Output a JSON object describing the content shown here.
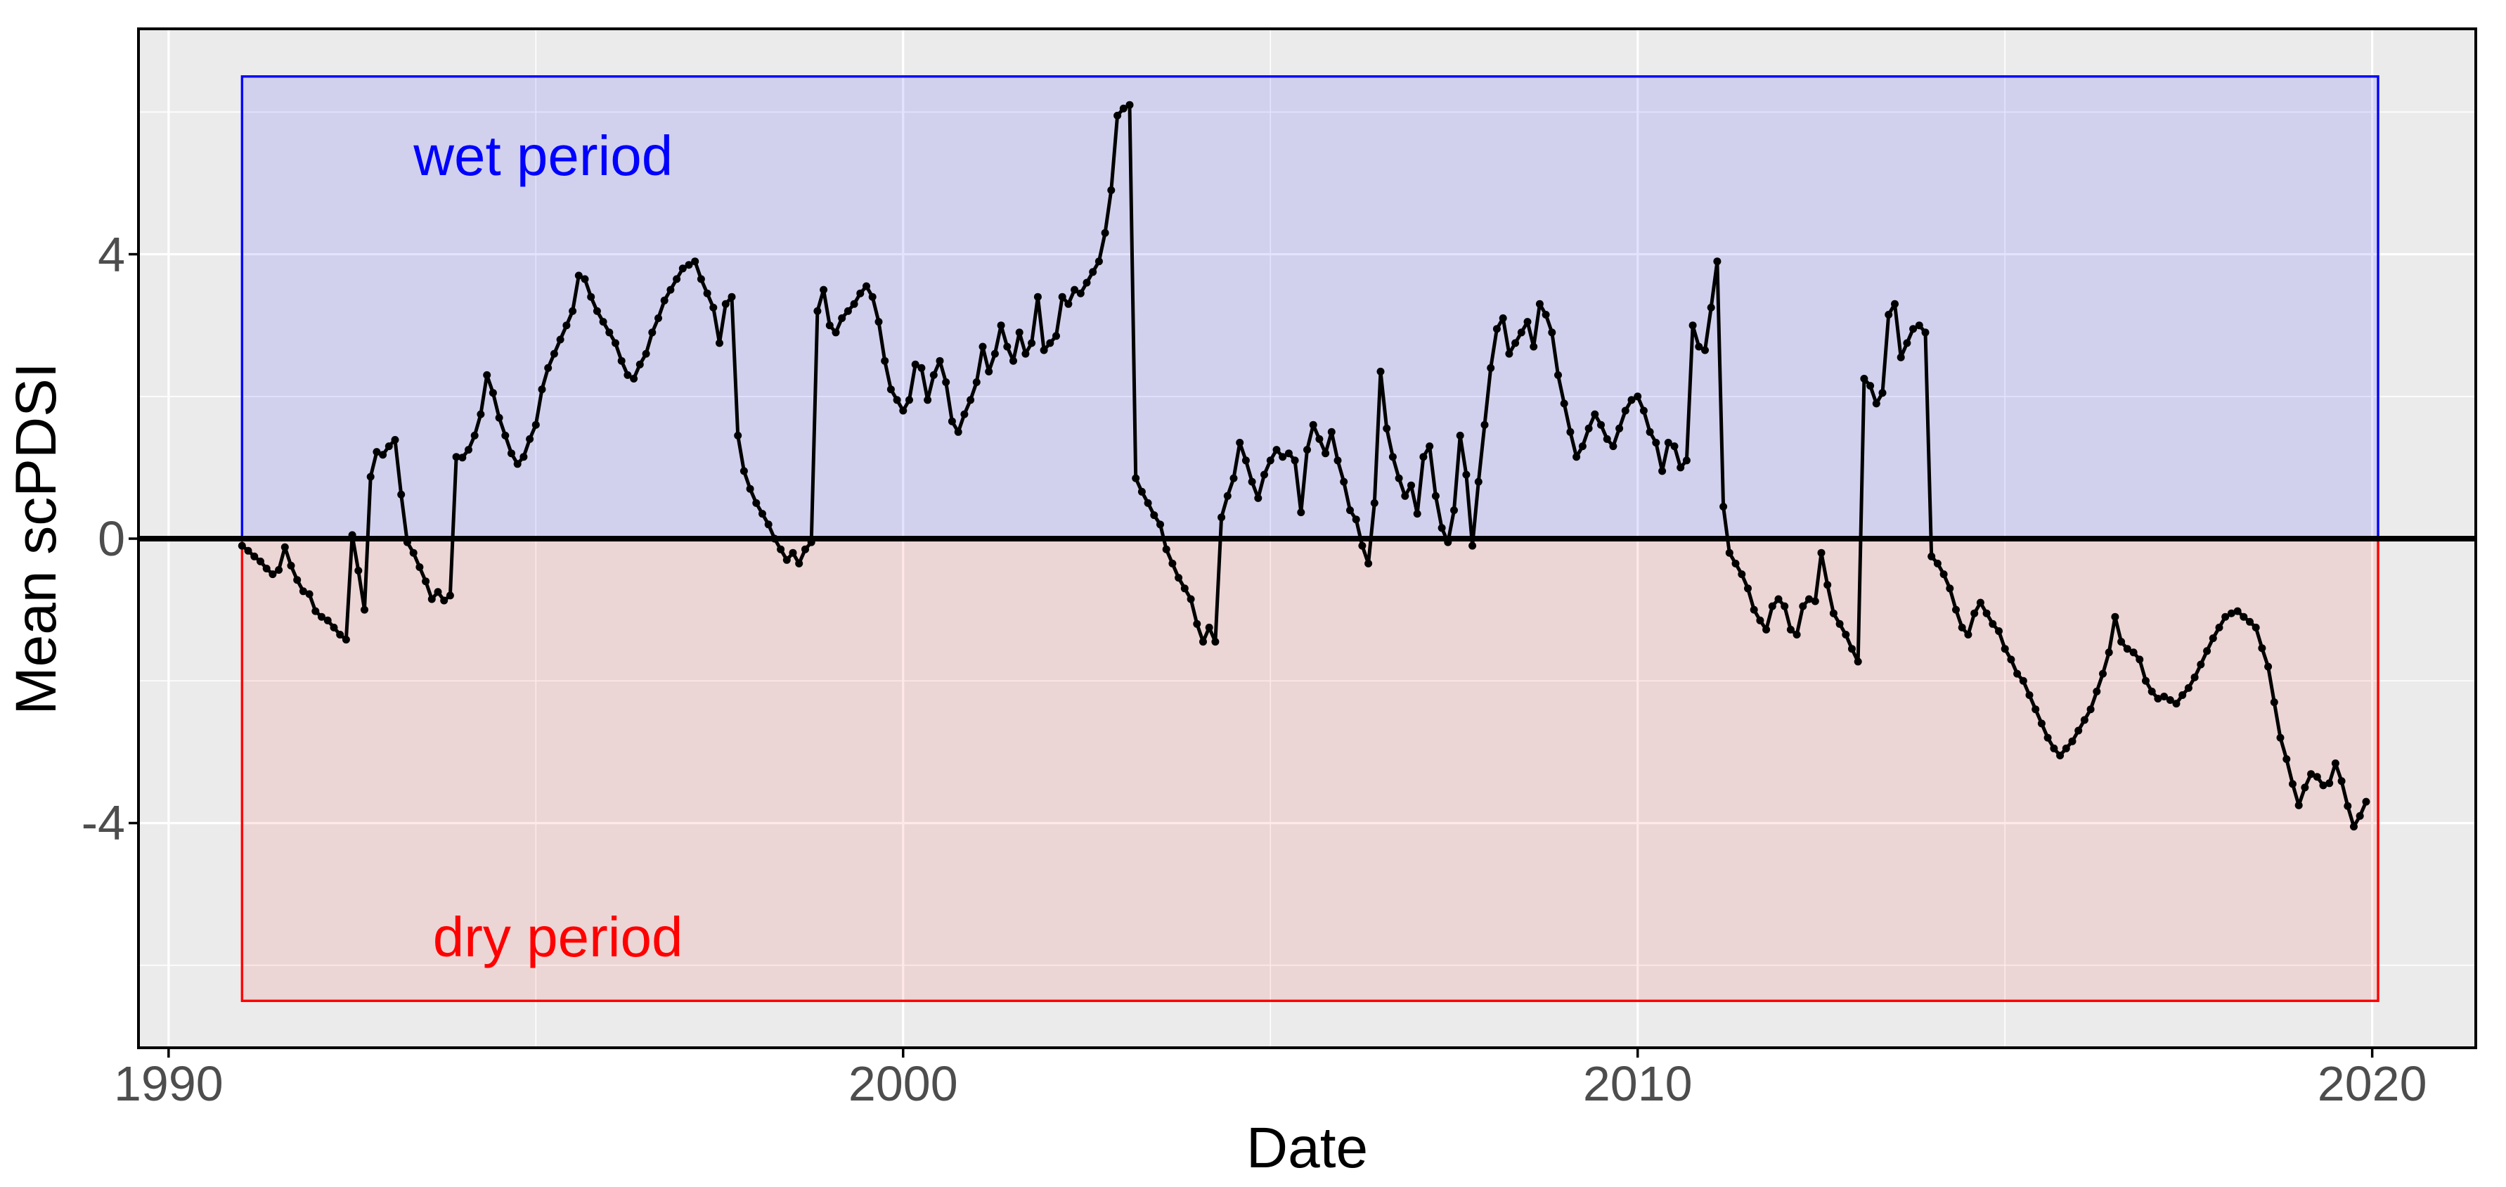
{
  "chart_data": {
    "type": "line",
    "title": "",
    "xlabel": "Date",
    "ylabel": "Mean scPDSI",
    "legend": "none",
    "grid": "on",
    "panel_bg": "#EBEBEB",
    "grid_color": "#FFFFFF",
    "tick_label_color": "#4D4D4D",
    "axis_title_color": "#000000",
    "xlim": [
      1989.59,
      2021.41
    ],
    "ylim": [
      -7.16,
      7.17
    ],
    "x_ticks": [
      1990,
      2000,
      2010,
      2020
    ],
    "x_minor_ticks": [
      1995,
      2005,
      2015
    ],
    "y_ticks": [
      4,
      0,
      -4
    ],
    "y_minor_ticks": [
      6,
      2,
      -2,
      -6
    ],
    "hline": {
      "y": 0,
      "color": "#000000"
    },
    "regions": [
      {
        "name": "wet",
        "x0": 1991.0,
        "x1": 2020.08,
        "y0": 0,
        "y1": 6.5,
        "fill": "rgba(0,0,255,0.11)",
        "border": "#0000FF"
      },
      {
        "name": "dry",
        "x0": 1991.0,
        "x1": 2020.08,
        "y0": -6.5,
        "y1": 0,
        "fill": "rgba(255,0,0,0.09)",
        "border": "#FF0000"
      }
    ],
    "annotations": [
      {
        "text": "wet period",
        "x": 1995.1,
        "y": 5.38,
        "color": "#0000FF"
      },
      {
        "text": "dry period",
        "x": 1995.3,
        "y": -5.61,
        "color": "#FF0000"
      }
    ],
    "series": [
      {
        "name": "Mean scPDSI",
        "color": "#000000",
        "marker": "point",
        "start_year": 1991,
        "frequency": "monthly",
        "values": [
          -0.1,
          -0.17,
          -0.25,
          -0.32,
          -0.42,
          -0.5,
          -0.44,
          -0.12,
          -0.38,
          -0.58,
          -0.74,
          -0.78,
          -1.02,
          -1.1,
          -1.15,
          -1.25,
          -1.35,
          -1.42,
          0.05,
          -0.45,
          -1.0,
          0.87,
          1.22,
          1.18,
          1.3,
          1.39,
          0.62,
          -0.05,
          -0.2,
          -0.4,
          -0.6,
          -0.85,
          -0.75,
          -0.87,
          -0.8,
          1.15,
          1.14,
          1.25,
          1.45,
          1.75,
          2.3,
          2.05,
          1.7,
          1.45,
          1.2,
          1.05,
          1.15,
          1.4,
          1.6,
          2.1,
          2.4,
          2.6,
          2.8,
          3.0,
          3.2,
          3.7,
          3.65,
          3.4,
          3.2,
          3.05,
          2.9,
          2.75,
          2.5,
          2.3,
          2.25,
          2.45,
          2.6,
          2.9,
          3.1,
          3.35,
          3.5,
          3.65,
          3.8,
          3.85,
          3.9,
          3.65,
          3.45,
          3.25,
          2.75,
          3.3,
          3.4,
          1.45,
          0.95,
          0.7,
          0.5,
          0.35,
          0.2,
          0.0,
          -0.15,
          -0.3,
          -0.2,
          -0.35,
          -0.15,
          -0.05,
          3.2,
          3.5,
          3.0,
          2.9,
          3.1,
          3.2,
          3.3,
          3.45,
          3.55,
          3.4,
          3.05,
          2.5,
          2.1,
          1.95,
          1.8,
          1.95,
          2.45,
          2.4,
          1.95,
          2.3,
          2.5,
          2.2,
          1.65,
          1.5,
          1.75,
          1.95,
          2.2,
          2.7,
          2.35,
          2.6,
          3.0,
          2.7,
          2.5,
          2.9,
          2.6,
          2.75,
          3.4,
          2.65,
          2.75,
          2.85,
          3.4,
          3.3,
          3.5,
          3.45,
          3.6,
          3.75,
          3.9,
          4.3,
          4.9,
          5.95,
          6.05,
          6.1,
          0.85,
          0.66,
          0.5,
          0.33,
          0.2,
          -0.15,
          -0.35,
          -0.55,
          -0.7,
          -0.85,
          -1.2,
          -1.45,
          -1.25,
          -1.45,
          0.3,
          0.6,
          0.85,
          1.35,
          1.1,
          0.8,
          0.57,
          0.9,
          1.1,
          1.25,
          1.15,
          1.2,
          1.1,
          0.37,
          1.25,
          1.6,
          1.4,
          1.2,
          1.5,
          1.1,
          0.8,
          0.4,
          0.27,
          -0.1,
          -0.35,
          0.5,
          2.35,
          1.55,
          1.15,
          0.85,
          0.6,
          0.75,
          0.35,
          1.15,
          1.3,
          0.6,
          0.15,
          -0.05,
          0.4,
          1.45,
          0.9,
          -0.1,
          0.8,
          1.6,
          2.4,
          2.95,
          3.1,
          2.6,
          2.75,
          2.9,
          3.05,
          2.7,
          3.3,
          3.15,
          2.9,
          2.3,
          1.9,
          1.5,
          1.15,
          1.3,
          1.55,
          1.75,
          1.6,
          1.4,
          1.3,
          1.55,
          1.8,
          1.95,
          2.0,
          1.8,
          1.5,
          1.35,
          0.95,
          1.35,
          1.3,
          1.0,
          1.1,
          3.0,
          2.7,
          2.65,
          3.25,
          3.9,
          0.45,
          -0.2,
          -0.35,
          -0.5,
          -0.7,
          -1.0,
          -1.15,
          -1.28,
          -0.95,
          -0.85,
          -0.95,
          -1.28,
          -1.35,
          -0.95,
          -0.85,
          -0.88,
          -0.2,
          -0.65,
          -1.05,
          -1.2,
          -1.35,
          -1.55,
          -1.73,
          2.25,
          2.15,
          1.9,
          2.05,
          3.15,
          3.3,
          2.55,
          2.75,
          2.95,
          3.0,
          2.9,
          -0.25,
          -0.35,
          -0.5,
          -0.7,
          -1.0,
          -1.25,
          -1.35,
          -1.05,
          -0.9,
          -1.05,
          -1.2,
          -1.3,
          -1.55,
          -1.7,
          -1.9,
          -2.0,
          -2.2,
          -2.4,
          -2.6,
          -2.8,
          -2.95,
          -3.05,
          -2.95,
          -2.85,
          -2.7,
          -2.55,
          -2.4,
          -2.15,
          -1.9,
          -1.6,
          -1.1,
          -1.45,
          -1.55,
          -1.6,
          -1.7,
          -2.0,
          -2.15,
          -2.25,
          -2.22,
          -2.27,
          -2.32,
          -2.2,
          -2.1,
          -1.95,
          -1.77,
          -1.58,
          -1.4,
          -1.25,
          -1.1,
          -1.05,
          -1.02,
          -1.1,
          -1.17,
          -1.25,
          -1.54,
          -1.8,
          -2.3,
          -2.8,
          -3.1,
          -3.45,
          -3.75,
          -3.5,
          -3.31,
          -3.35,
          -3.47,
          -3.44,
          -3.16,
          -3.41,
          -3.76,
          -4.05,
          -3.9,
          -3.7
        ]
      }
    ]
  }
}
